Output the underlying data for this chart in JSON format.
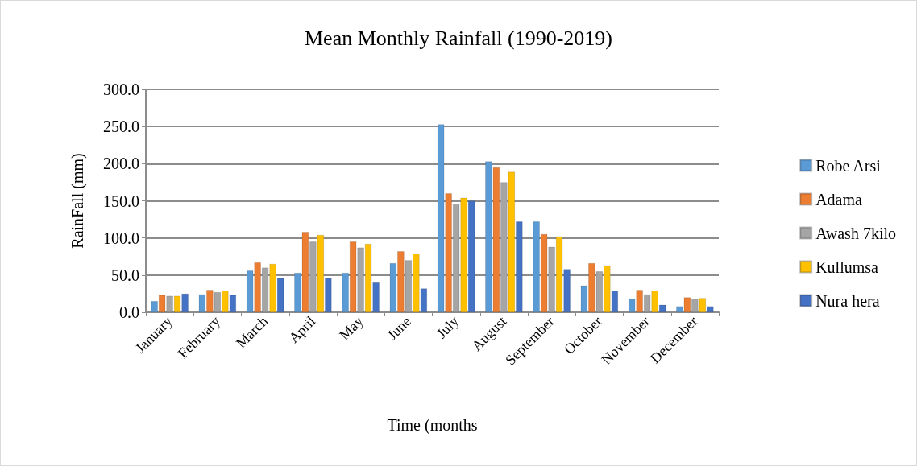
{
  "chart_data": {
    "type": "bar",
    "title": "Mean Monthly Rainfall (1990-2019)",
    "xlabel": "Time (months",
    "ylabel": "RainFall (mm)",
    "categories": [
      "January",
      "February",
      "March",
      "April",
      "May",
      "June",
      "July",
      "August",
      "September",
      "October",
      "November",
      "December"
    ],
    "series": [
      {
        "name": "Robe Arsi",
        "color": "#5b9bd5",
        "values": [
          15,
          24,
          56,
          53,
          53,
          66,
          253,
          203,
          122,
          36,
          18,
          8
        ]
      },
      {
        "name": "Adama",
        "color": "#ed7d31",
        "values": [
          23,
          30,
          67,
          108,
          95,
          82,
          160,
          195,
          105,
          66,
          30,
          20
        ]
      },
      {
        "name": "Awash 7kilo",
        "color": "#a5a5a5",
        "values": [
          22,
          27,
          60,
          95,
          87,
          70,
          145,
          175,
          88,
          55,
          24,
          18
        ]
      },
      {
        "name": "Kullumsa",
        "color": "#ffc000",
        "values": [
          22,
          29,
          65,
          104,
          92,
          79,
          154,
          189,
          102,
          63,
          29,
          19
        ]
      },
      {
        "name": "Nura hera",
        "color": "#4472c4",
        "values": [
          25,
          23,
          46,
          46,
          40,
          32,
          150,
          122,
          58,
          29,
          10,
          8
        ]
      }
    ],
    "ylim": [
      0,
      300
    ],
    "yticks": [
      {
        "value": 0,
        "label": "0.0"
      },
      {
        "value": 50,
        "label": "50.0"
      },
      {
        "value": 100,
        "label": "100.0"
      },
      {
        "value": 150,
        "label": "150.0"
      },
      {
        "value": 200,
        "label": "200.0"
      },
      {
        "value": 250,
        "label": "250.0"
      },
      {
        "value": 300,
        "label": "300.0"
      }
    ],
    "grid": "y",
    "legend": "right"
  }
}
